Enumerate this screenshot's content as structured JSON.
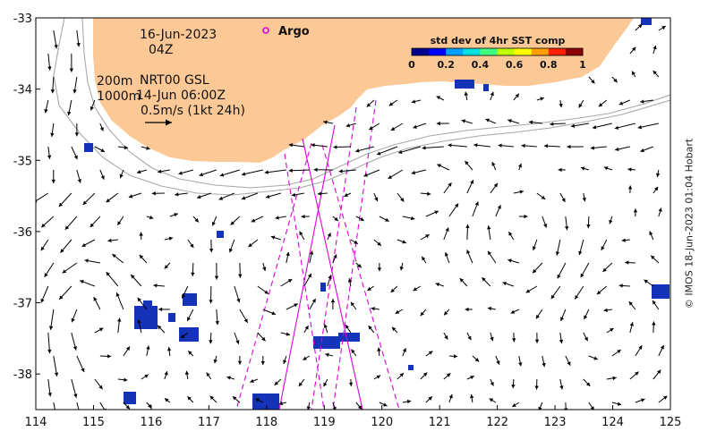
{
  "map": {
    "date": "16-Jun-2023",
    "time": "04Z",
    "depth_line1": "200m",
    "depth_line2": "1000m",
    "product": "NRT00 GSL",
    "altimetry_time": "14-Jun 06:00Z",
    "scale_label": "0.5m/s (1kt 24h)",
    "argo_label": "Argo",
    "credit": "© IMOS 18-Jun-2023 01:04 Hobart",
    "x_axis": {
      "range": [
        114,
        125
      ],
      "ticks": [
        "114",
        "115",
        "116",
        "117",
        "118",
        "119",
        "120",
        "121",
        "122",
        "123",
        "124",
        "125"
      ]
    },
    "y_axis": {
      "range": [
        -38.5,
        -33
      ],
      "ticks": [
        "-33",
        "-34",
        "-35",
        "-36",
        "-37",
        "-38"
      ]
    },
    "colorbar": {
      "title": "std dev of 4hr SST comp",
      "ticks": [
        "0",
        "0.2",
        "0.4",
        "0.6",
        "0.8",
        "1"
      ],
      "colors": [
        "#00008b",
        "#0000ff",
        "#00a0ff",
        "#00e0e0",
        "#40ff80",
        "#c0ff00",
        "#ffff00",
        "#ffa000",
        "#ff2000",
        "#8b0000"
      ]
    },
    "colors": {
      "land": "#fbc896",
      "sst_patch": "#1433b8",
      "altimeter_track": "#dd00dd",
      "vector": "#000000",
      "isobath": "#a8a8a8"
    }
  }
}
